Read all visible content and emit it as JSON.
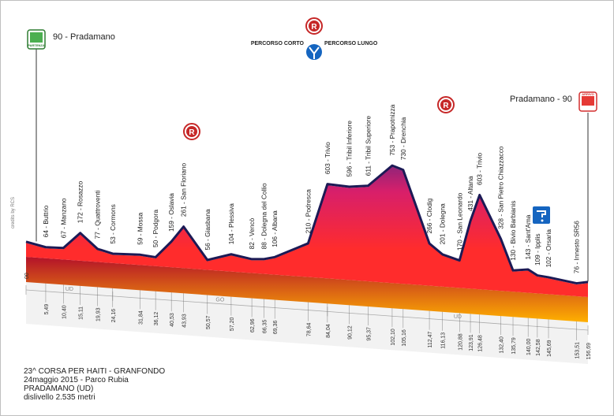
{
  "chart_data": {
    "type": "area",
    "title": "23^ CORSA PER HAITI - GRANFONDO",
    "info_lines": [
      "23^ CORSA PER HAITI - GRANFONDO",
      "24maggio 2015 - Parco Rubia",
      "PRADAMANO (UD)",
      "dislivello 2.535 metri"
    ],
    "start_label": "90 - Pradamano",
    "end_label": "Pradamano - 90",
    "route_labels": [
      "PERCORSO CORTO",
      "PERCORSO LUNGO"
    ],
    "copyright": "credits by RCS",
    "km_start_label": "00",
    "provinces": [
      {
        "label": "UD",
        "km_from": 0,
        "km_to": 24.16
      },
      {
        "label": "GO",
        "km_from": 24.16,
        "km_to": 84.04
      },
      {
        "label": "UD",
        "km_from": 84.04,
        "km_to": 156.69
      }
    ],
    "waypoints": [
      {
        "km": 0,
        "km_label": "",
        "name": "",
        "alt": 90
      },
      {
        "km": 5.49,
        "km_label": "5,49",
        "name": "64 - Buttrio",
        "alt": 64
      },
      {
        "km": 10.4,
        "km_label": "10,40",
        "name": "67 - Manzano",
        "alt": 67
      },
      {
        "km": 15.11,
        "km_label": "15,11",
        "name": "172 - Rosazzo",
        "alt": 172
      },
      {
        "km": 19.93,
        "km_label": "19,93",
        "name": "77 - Quattroventi",
        "alt": 77
      },
      {
        "km": 24.16,
        "km_label": "24,16",
        "name": "53 - Cormons",
        "alt": 53
      },
      {
        "km": 31.84,
        "km_label": "31,84",
        "name": "59 - Mossa",
        "alt": 59
      },
      {
        "km": 36.12,
        "km_label": "36,12",
        "name": "50 - Podgora",
        "alt": 50
      },
      {
        "km": 40.53,
        "km_label": "40,53",
        "name": "159 - Oslavia",
        "alt": 159
      },
      {
        "km": 43.93,
        "km_label": "43,93",
        "name": "261 - San Floriano",
        "alt": 261
      },
      {
        "km": 50.57,
        "km_label": "50,57",
        "name": "56 - Giasbana",
        "alt": 56
      },
      {
        "km": 57.2,
        "km_label": "57,20",
        "name": "104 - Plessiva",
        "alt": 104
      },
      {
        "km": 62.96,
        "km_label": "62,96",
        "name": "82 - Vencò",
        "alt": 82
      },
      {
        "km": 66.35,
        "km_label": "66,35",
        "name": "88 - Dolegna del Collio",
        "alt": 88
      },
      {
        "km": 69.36,
        "km_label": "69,36",
        "name": "106 - Albana",
        "alt": 106
      },
      {
        "km": 78.64,
        "km_label": "78,64",
        "name": "210 - Podresca",
        "alt": 210
      },
      {
        "km": 84.04,
        "km_label": "84,04",
        "name": "603 - Trivio",
        "alt": 603
      },
      {
        "km": 90.12,
        "km_label": "90,12",
        "name": "596 - Tribil Inferiore",
        "alt": 596
      },
      {
        "km": 95.37,
        "km_label": "95,37",
        "name": "611 - Tribil Superiore",
        "alt": 611
      },
      {
        "km": 102.1,
        "km_label": "102,10",
        "name": "753 - Prapotnizza",
        "alt": 753
      },
      {
        "km": 105.16,
        "km_label": "105,16",
        "name": "730 - Drenchia",
        "alt": 730
      },
      {
        "km": 112.47,
        "km_label": "112,47",
        "name": "266 - Clodig",
        "alt": 266
      },
      {
        "km": 116.13,
        "km_label": "116,13",
        "name": "201 - Dolegna",
        "alt": 201
      },
      {
        "km": 120.88,
        "km_label": "120,88",
        "name": "170 - San Leonardo",
        "alt": 170
      },
      {
        "km": 123.91,
        "km_label": "123,91",
        "name": "431 - Altana",
        "alt": 431
      },
      {
        "km": 126.48,
        "km_label": "126,48",
        "name": "603 - Trivio",
        "alt": 603
      },
      {
        "km": 132.4,
        "km_label": "132,40",
        "name": "328 - San Pietro Chiazzacco",
        "alt": 328
      },
      {
        "km": 135.79,
        "km_label": "135,79",
        "name": "130 - Bivio Barbianis",
        "alt": 130
      },
      {
        "km": 140.0,
        "km_label": "140,00",
        "name": "143 - Sant'Ama",
        "alt": 143
      },
      {
        "km": 142.58,
        "km_label": "142,58",
        "name": "109 - Ipplis",
        "alt": 109
      },
      {
        "km": 145.69,
        "km_label": "145,69",
        "name": "102 - Orsaria",
        "alt": 102
      },
      {
        "km": 153.51,
        "km_label": "153,51",
        "name": "76 - Innesto SR56",
        "alt": 76
      },
      {
        "km": 156.69,
        "km_label": "156,69",
        "name": "",
        "alt": 90
      }
    ],
    "markers": {
      "start": "PARTENZA",
      "finish": "ARRIVO",
      "refreshment_letter": "R",
      "refreshment_km": [
        43.93,
        84.04,
        126.48
      ],
      "water_km": 146.5
    },
    "colors": {
      "low": "#ff2c2c",
      "mid": "#d81f6a",
      "high": "#3a2a8c",
      "top": "#1c1a55",
      "base_dark": "#b3122a",
      "base_light": "#ffb000",
      "band": "#e8e8e8"
    }
  }
}
